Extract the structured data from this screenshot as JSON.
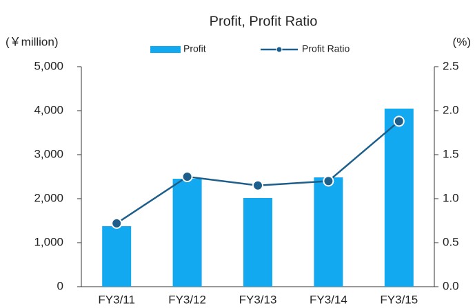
{
  "chart_data": {
    "type": "bar_line",
    "title": "Profit, Profit Ratio",
    "y_label": "(￥million)",
    "y2_label": "(%)",
    "categories": [
      "FY3/11",
      "FY3/12",
      "FY3/13",
      "FY3/14",
      "FY3/15"
    ],
    "series": [
      {
        "name": "Profit",
        "type": "bar",
        "color": "#13a9f1",
        "values": [
          1375,
          2453,
          2016,
          2484,
          4047
        ]
      },
      {
        "name": "Profit Ratio",
        "type": "line",
        "axis": "y2",
        "color": "#1d5f8a",
        "values": [
          0.72,
          1.25,
          1.15,
          1.2,
          1.88
        ]
      }
    ],
    "ylim": [
      0,
      5000
    ],
    "yticks": [
      0,
      {
        "value": 1000,
        "label": "1,000"
      },
      {
        "value": 2000,
        "label": "2,000"
      },
      {
        "value": 3000,
        "label": "3,000"
      },
      {
        "value": 4000,
        "label": "4,000"
      },
      {
        "value": 5000,
        "label": "5,000"
      }
    ],
    "y2lim": [
      0,
      2.5
    ],
    "y2ticks": [
      {
        "value": 0,
        "label": "0.0"
      },
      {
        "value": 0.5,
        "label": "0.5"
      },
      {
        "value": 1,
        "label": "1.0"
      },
      {
        "value": 1.5,
        "label": "1.5"
      },
      {
        "value": 2,
        "label": "2.0"
      },
      {
        "value": 2.5,
        "label": "2.5"
      }
    ],
    "grid": false
  }
}
